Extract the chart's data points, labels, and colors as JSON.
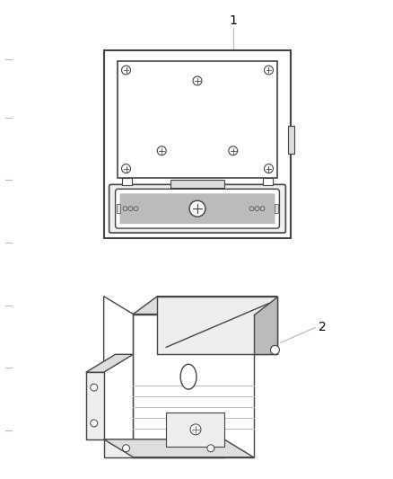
{
  "background_color": "#ffffff",
  "fig_width": 4.38,
  "fig_height": 5.33,
  "dpi": 100,
  "line_color": "#444444",
  "gray1": "#bbbbbb",
  "gray2": "#dddddd",
  "gray3": "#eeeeee",
  "part1_label": "1",
  "part2_label": "2"
}
